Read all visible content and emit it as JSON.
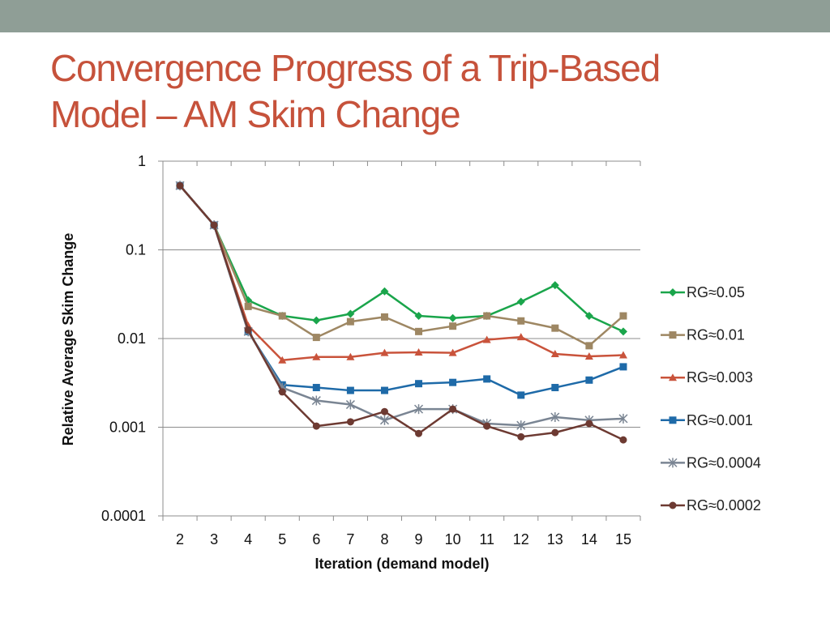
{
  "header": {
    "bar_color": "#8f9e96"
  },
  "slide": {
    "title_line1": "Convergence Progress of a Trip-Based",
    "title_line2": "Model – AM Skim Change",
    "title_color": "#c6523b"
  },
  "chart_data": {
    "type": "line",
    "title": "",
    "xlabel": "Iteration (demand model)",
    "ylabel": "Relative Average Skim Change",
    "yscale": "log",
    "ylim": [
      0.0001,
      1
    ],
    "y_tick_labels": [
      "1",
      "0.1",
      "0.01",
      "0.001",
      "0.0001"
    ],
    "y_tick_values": [
      1,
      0.1,
      0.01,
      0.001,
      0.0001
    ],
    "x": [
      2,
      3,
      4,
      5,
      6,
      7,
      8,
      9,
      10,
      11,
      12,
      13,
      14,
      15
    ],
    "x_tick_labels": [
      "2",
      "3",
      "4",
      "5",
      "6",
      "7",
      "8",
      "9",
      "10",
      "11",
      "12",
      "13",
      "14",
      "15"
    ],
    "grid": "horizontal",
    "legend_position": "right",
    "series": [
      {
        "name": "RG≈0.05",
        "color": "#1aa54b",
        "marker": "diamond",
        "values": [
          0.53,
          0.19,
          0.027,
          0.018,
          0.016,
          0.019,
          0.034,
          0.018,
          0.017,
          0.018,
          0.026,
          0.04,
          0.018,
          0.012
        ]
      },
      {
        "name": "RG≈0.01",
        "color": "#9e8763",
        "marker": "square",
        "values": [
          0.53,
          0.19,
          0.023,
          0.018,
          0.0103,
          0.0155,
          0.0175,
          0.012,
          0.0138,
          0.018,
          0.0158,
          0.0131,
          0.0083,
          0.018
        ]
      },
      {
        "name": "RG≈0.003",
        "color": "#c9533b",
        "marker": "triangle",
        "values": [
          0.53,
          0.19,
          0.014,
          0.0057,
          0.0062,
          0.0062,
          0.0069,
          0.007,
          0.0069,
          0.0097,
          0.0104,
          0.0067,
          0.0063,
          0.0065
        ]
      },
      {
        "name": "RG≈0.001",
        "color": "#1e6aa8",
        "marker": "square",
        "values": [
          0.53,
          0.19,
          0.012,
          0.003,
          0.0028,
          0.0026,
          0.0026,
          0.0031,
          0.0032,
          0.0035,
          0.0023,
          0.0028,
          0.0034,
          0.0048
        ]
      },
      {
        "name": "RG≈0.0004",
        "color": "#7a8593",
        "marker": "star",
        "values": [
          0.53,
          0.19,
          0.012,
          0.0028,
          0.002,
          0.0018,
          0.0012,
          0.0016,
          0.0016,
          0.0011,
          0.00105,
          0.0013,
          0.0012,
          0.00125
        ]
      },
      {
        "name": "RG≈0.0002",
        "color": "#6d3a32",
        "marker": "circle",
        "values": [
          0.53,
          0.19,
          0.0125,
          0.0025,
          0.00103,
          0.00115,
          0.0015,
          0.00085,
          0.0016,
          0.00103,
          0.00078,
          0.00087,
          0.0011,
          0.00072
        ]
      }
    ]
  }
}
